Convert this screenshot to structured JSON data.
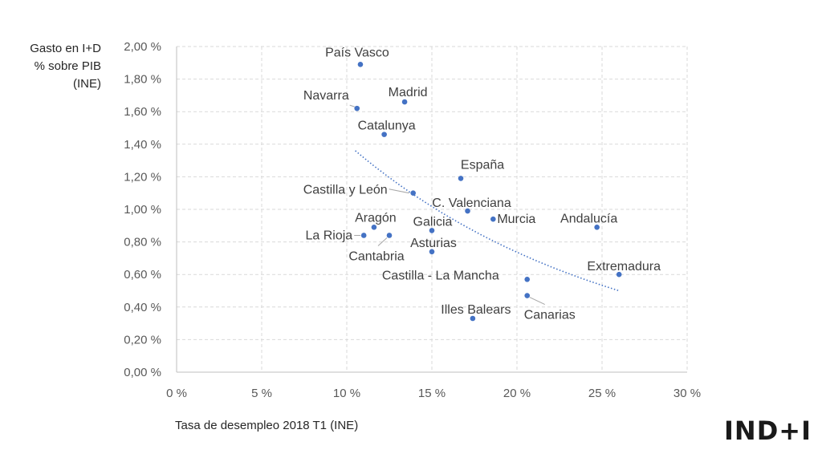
{
  "chart_data": {
    "type": "scatter",
    "ylabel_lines": [
      "Gasto en I+D",
      "% sobre PIB",
      "(INE)"
    ],
    "xlabel": "Tasa de desempleo 2018 T1 (INE)",
    "xlim": [
      0,
      30
    ],
    "ylim": [
      0,
      2
    ],
    "x_ticks": [
      "0 %",
      "5 %",
      "10 %",
      "15 %",
      "20 %",
      "25 %",
      "30 %"
    ],
    "y_ticks": [
      "0,00 %",
      "0,20 %",
      "0,40 %",
      "0,60 %",
      "0,80 %",
      "1,00 %",
      "1,20 %",
      "1,40 %",
      "1,60 %",
      "1,80 %",
      "2,00 %"
    ],
    "grid": true,
    "marker_color": "#4472c4",
    "trendline": {
      "type": "polynomial",
      "x": [
        10.5,
        26
      ],
      "start_y": 1.36,
      "end_y": 0.5
    },
    "points": [
      {
        "label": "País Vasco",
        "x": 10.8,
        "y": 1.89
      },
      {
        "label": "Madrid",
        "x": 13.4,
        "y": 1.66
      },
      {
        "label": "Navarra",
        "x": 10.6,
        "y": 1.62
      },
      {
        "label": "Catalunya",
        "x": 12.2,
        "y": 1.46
      },
      {
        "label": "España",
        "x": 16.7,
        "y": 1.19
      },
      {
        "label": "Castilla y León",
        "x": 13.9,
        "y": 1.1
      },
      {
        "label": "C. Valenciana",
        "x": 17.1,
        "y": 0.99
      },
      {
        "label": "Murcia",
        "x": 18.6,
        "y": 0.94
      },
      {
        "label": "Andalucía",
        "x": 24.7,
        "y": 0.89
      },
      {
        "label": "Aragón",
        "x": 11.6,
        "y": 0.89
      },
      {
        "label": "Galicia",
        "x": 15.0,
        "y": 0.87
      },
      {
        "label": "La Rioja",
        "x": 11.0,
        "y": 0.84
      },
      {
        "label": "Cantabria",
        "x": 12.5,
        "y": 0.84
      },
      {
        "label": "Asturias",
        "x": 15.0,
        "y": 0.74
      },
      {
        "label": "Extremadura",
        "x": 26.0,
        "y": 0.6
      },
      {
        "label": "Castilla - La Mancha",
        "x": 20.6,
        "y": 0.57
      },
      {
        "label": "Canarias",
        "x": 20.6,
        "y": 0.47
      },
      {
        "label": "Illes Balears",
        "x": 17.4,
        "y": 0.33
      }
    ]
  },
  "logo_text": "IND+I"
}
